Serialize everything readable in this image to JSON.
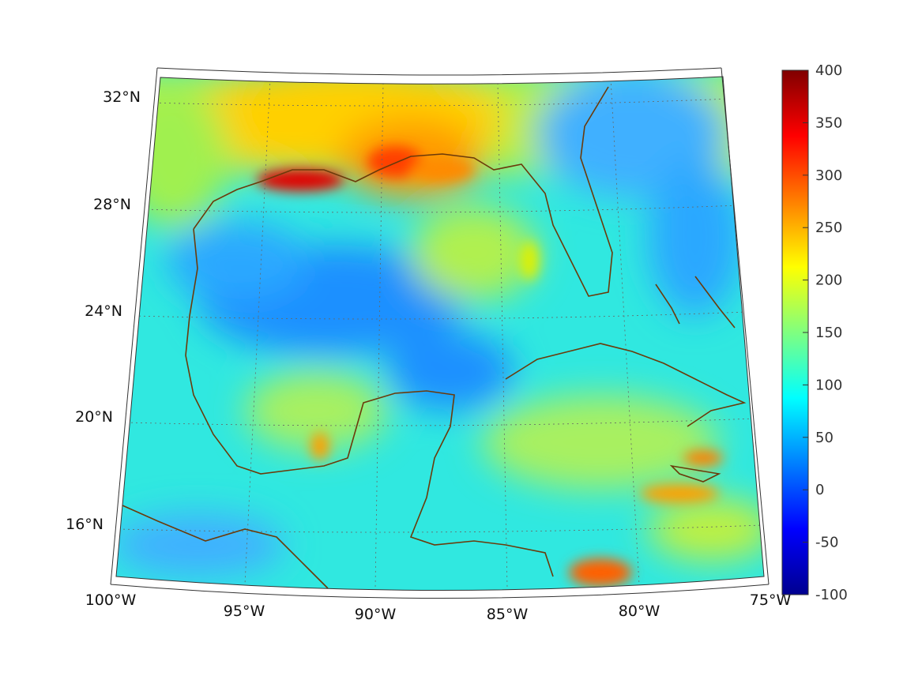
{
  "map": {
    "projection": "conic",
    "lat_labels": [
      "32°N",
      "28°N",
      "24°N",
      "20°N",
      "16°N"
    ],
    "lon_labels": [
      "100°W",
      "95°W",
      "90°W",
      "85°W",
      "80°W",
      "75°W"
    ],
    "coastline_color": "#6b3a0a",
    "grid": "dotted"
  },
  "colorbar": {
    "colormap": "jet",
    "min": -100,
    "max": 400,
    "ticks": [
      "400",
      "350",
      "300",
      "250",
      "200",
      "150",
      "100",
      "50",
      "0",
      "-50",
      "-100"
    ]
  }
}
